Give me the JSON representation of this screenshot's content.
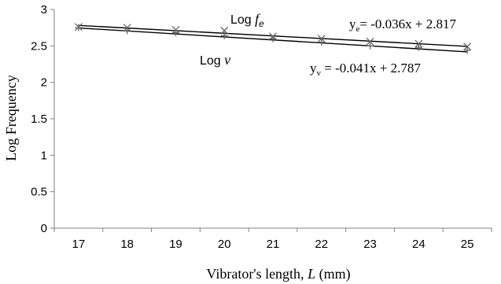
{
  "chart_data": {
    "type": "scatter",
    "xlabel_prefix": "Vibrator's length, ",
    "xlabel_var": "L",
    "xlabel_unit": " (mm)",
    "ylabel": "Log Frequency",
    "xlim": [
      17,
      25
    ],
    "ylim": [
      0,
      3
    ],
    "x_ticks": [
      17,
      18,
      19,
      20,
      21,
      22,
      23,
      24,
      25
    ],
    "y_ticks": [
      0,
      0.5,
      1,
      1.5,
      2,
      2.5,
      3
    ],
    "grid": false,
    "series": [
      {
        "name": "Log fe",
        "label_prefix": "Log ",
        "label_var": "f",
        "label_sub": "e",
        "marker": "x",
        "x": [
          17,
          18,
          19,
          20,
          21,
          22,
          23,
          24,
          25
        ],
        "y": [
          2.76,
          2.75,
          2.72,
          2.71,
          2.63,
          2.6,
          2.56,
          2.53,
          2.49
        ],
        "trend": {
          "slope": -0.036,
          "intercept": 2.817
        },
        "equation_prefix": "y",
        "equation_sub": "e",
        "equation_text": "= -0.036x + 2.817"
      },
      {
        "name": "Log v",
        "label_prefix": "Log ",
        "label_var": "v",
        "label_sub": "",
        "marker": "plus",
        "x": [
          17,
          18,
          19,
          20,
          21,
          22,
          23,
          24,
          25
        ],
        "y": [
          2.75,
          2.71,
          2.68,
          2.64,
          2.6,
          2.55,
          2.5,
          2.48,
          2.44
        ],
        "trend": {
          "slope": -0.041,
          "intercept": 2.787
        },
        "equation_prefix": "y",
        "equation_sub": "v",
        "equation_text": " = -0.041x + 2.787"
      }
    ]
  }
}
